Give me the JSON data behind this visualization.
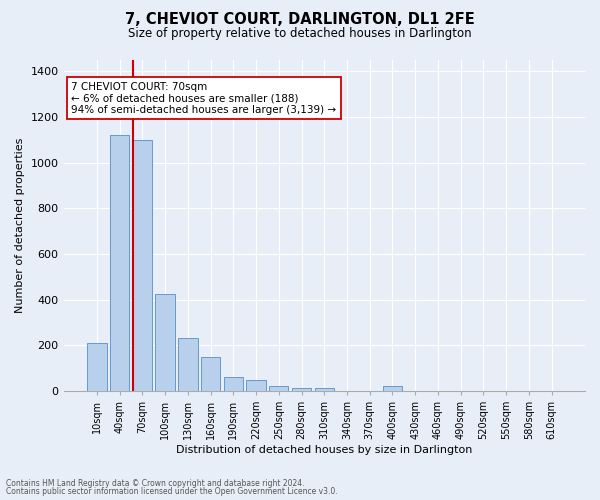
{
  "title": "7, CHEVIOT COURT, DARLINGTON, DL1 2FE",
  "subtitle": "Size of property relative to detached houses in Darlington",
  "xlabel": "Distribution of detached houses by size in Darlington",
  "ylabel": "Number of detached properties",
  "footnote1": "Contains HM Land Registry data © Crown copyright and database right 2024.",
  "footnote2": "Contains public sector information licensed under the Open Government Licence v3.0.",
  "annotation_title": "7 CHEVIOT COURT: 70sqm",
  "annotation_line1": "← 6% of detached houses are smaller (188)",
  "annotation_line2": "94% of semi-detached houses are larger (3,139) →",
  "bar_color": "#b8d0eb",
  "bar_edge_color": "#6699cc",
  "categories": [
    "10sqm",
    "40sqm",
    "70sqm",
    "100sqm",
    "130sqm",
    "160sqm",
    "190sqm",
    "220sqm",
    "250sqm",
    "280sqm",
    "310sqm",
    "340sqm",
    "370sqm",
    "400sqm",
    "430sqm",
    "460sqm",
    "490sqm",
    "520sqm",
    "550sqm",
    "580sqm",
    "610sqm"
  ],
  "values": [
    210,
    1120,
    1100,
    425,
    232,
    148,
    62,
    48,
    22,
    14,
    14,
    0,
    0,
    22,
    0,
    0,
    0,
    0,
    0,
    0,
    0
  ],
  "ylim": [
    0,
    1450
  ],
  "yticks": [
    0,
    200,
    400,
    600,
    800,
    1000,
    1200,
    1400
  ],
  "background_color": "#e8eef8",
  "plot_bg_color": "#e8eef8",
  "grid_color": "#ffffff",
  "redline_color": "#cc0000",
  "annot_box_color": "#ffffff",
  "annot_box_edge": "#cc0000",
  "redline_index": 2,
  "bar_width": 0.85
}
